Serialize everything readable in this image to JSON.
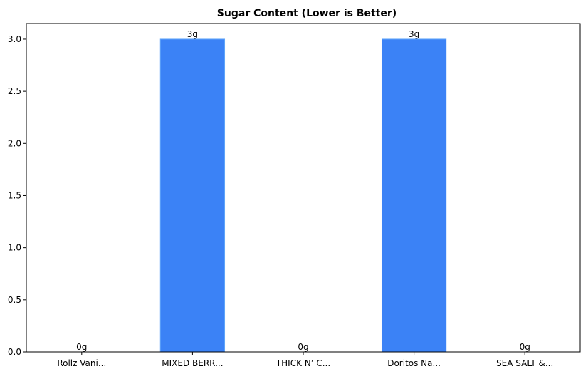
{
  "chart_data": {
    "type": "bar",
    "title": "Sugar Content (Lower is Better)",
    "xlabel": "",
    "ylabel": "",
    "categories": [
      "Rollz Vani...",
      "MIXED BERR...",
      "THICK N’ C...",
      "Doritos Na...",
      "SEA SALT &..."
    ],
    "values": [
      0,
      3,
      0,
      3,
      0
    ],
    "data_labels": [
      "0g",
      "3g",
      "0g",
      "3g",
      "0g"
    ],
    "ylim": [
      0,
      3.15
    ],
    "yticks": [
      0.0,
      0.5,
      1.0,
      1.5,
      2.0,
      2.5,
      3.0
    ],
    "ytick_labels": [
      "0.0",
      "0.5",
      "1.0",
      "1.5",
      "2.0",
      "2.5",
      "3.0"
    ],
    "grid": false,
    "legend": "none",
    "bar_color": "#3b82f6",
    "bar_edge_color": "#60a5fa"
  }
}
